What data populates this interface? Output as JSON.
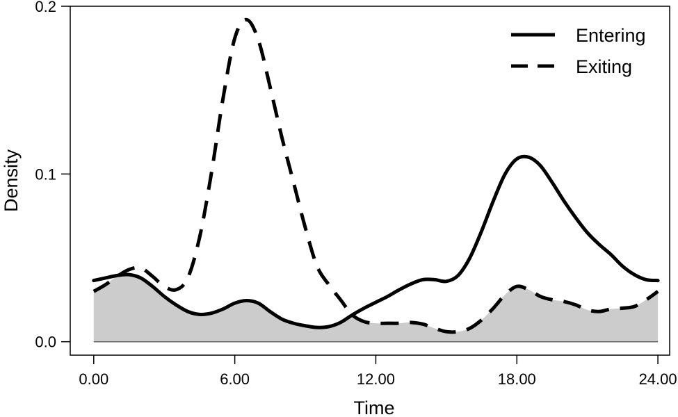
{
  "chart_data": {
    "type": "line",
    "xlabel": "Time",
    "ylabel": "Density",
    "xlim": [
      -1,
      24.5
    ],
    "ylim": [
      -0.008,
      0.2
    ],
    "xticks": [
      0,
      6,
      12,
      18,
      24
    ],
    "xtick_labels": [
      "0.00",
      "6.00",
      "12.00",
      "18.00",
      "24.00"
    ],
    "yticks": [
      0,
      0.1,
      0.2
    ],
    "ytick_labels": [
      "0.0",
      "0.1",
      "0.2"
    ],
    "legend_position": "top-right",
    "overlap_fill_color": "#cccccc",
    "series": [
      {
        "name": "Entering",
        "style": "solid",
        "x": [
          0,
          0.5,
          1,
          1.5,
          2,
          2.5,
          3,
          3.5,
          4,
          4.5,
          5,
          5.5,
          6,
          6.5,
          7,
          7.5,
          8,
          8.5,
          9,
          9.5,
          10,
          10.5,
          11,
          11.5,
          12,
          12.5,
          13,
          13.5,
          14,
          14.5,
          15,
          15.5,
          16,
          16.5,
          17,
          17.5,
          18,
          18.5,
          19,
          19.5,
          20,
          20.5,
          21,
          21.5,
          22,
          22.5,
          23,
          23.5,
          24
        ],
        "y": [
          0.0365,
          0.038,
          0.0395,
          0.04,
          0.038,
          0.033,
          0.027,
          0.022,
          0.018,
          0.0163,
          0.017,
          0.0195,
          0.023,
          0.0245,
          0.023,
          0.018,
          0.0135,
          0.011,
          0.0095,
          0.0085,
          0.009,
          0.0115,
          0.016,
          0.02,
          0.0235,
          0.027,
          0.031,
          0.0345,
          0.037,
          0.037,
          0.036,
          0.0395,
          0.05,
          0.066,
          0.084,
          0.1,
          0.109,
          0.11,
          0.105,
          0.095,
          0.084,
          0.074,
          0.065,
          0.058,
          0.052,
          0.045,
          0.04,
          0.037,
          0.0365
        ]
      },
      {
        "name": "Exiting",
        "style": "dashed",
        "x": [
          0,
          0.5,
          1,
          1.5,
          2,
          2.5,
          3,
          3.5,
          4,
          4.5,
          5,
          5.5,
          6,
          6.5,
          7,
          7.5,
          8,
          8.5,
          9,
          9.5,
          10,
          10.5,
          11,
          11.5,
          12,
          12.5,
          13,
          13.5,
          14,
          14.5,
          15,
          15.5,
          16,
          16.5,
          17,
          17.5,
          18,
          18.5,
          19,
          19.5,
          20,
          20.5,
          21,
          21.5,
          22,
          22.5,
          23,
          23.5,
          24
        ],
        "y": [
          0.03,
          0.034,
          0.039,
          0.043,
          0.044,
          0.039,
          0.033,
          0.031,
          0.038,
          0.062,
          0.1,
          0.145,
          0.181,
          0.192,
          0.18,
          0.152,
          0.122,
          0.095,
          0.068,
          0.045,
          0.034,
          0.025,
          0.016,
          0.012,
          0.011,
          0.011,
          0.011,
          0.0115,
          0.0105,
          0.008,
          0.006,
          0.006,
          0.008,
          0.013,
          0.02,
          0.028,
          0.033,
          0.031,
          0.027,
          0.025,
          0.024,
          0.022,
          0.019,
          0.018,
          0.0195,
          0.02,
          0.021,
          0.025,
          0.03
        ]
      }
    ]
  }
}
